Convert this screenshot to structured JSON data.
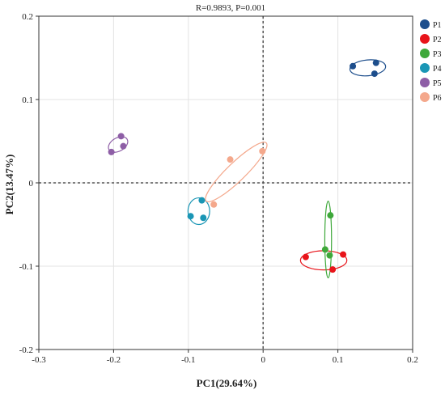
{
  "chart_data": {
    "type": "scatter",
    "title": "R=0.9893, P=0.001",
    "xlabel": "PC1(29.64%)",
    "ylabel": "PC2(13.47%)",
    "xlim": [
      -0.3,
      0.2
    ],
    "ylim": [
      -0.2,
      0.2
    ],
    "x_ticks": [
      -0.3,
      -0.2,
      -0.1,
      0,
      0.1,
      0.2
    ],
    "y_ticks": [
      0.2,
      0.1,
      0,
      -0.1,
      -0.2
    ],
    "x_tick_labels": [
      "-0.3",
      "-0.2",
      "-0.1",
      "0",
      "0.1",
      "0.2"
    ],
    "y_tick_labels": [
      "0.2",
      "0.1",
      "0",
      "-0.1",
      "-0.2"
    ],
    "grid": true,
    "reference_lines": {
      "x": 0,
      "y": 0,
      "style": "dotted"
    },
    "legend_position": "right",
    "series": [
      {
        "name": "P1",
        "color": "#1d4e8c",
        "points": [
          [
            0.12,
            0.14
          ],
          [
            0.151,
            0.144
          ],
          [
            0.149,
            0.131
          ]
        ],
        "ellipse": {
          "cx": 0.14,
          "cy": 0.138,
          "rx": 0.024,
          "ry": 0.0095,
          "angle_deg": -5
        }
      },
      {
        "name": "P2",
        "color": "#e8141a",
        "points": [
          [
            0.057,
            -0.089
          ],
          [
            0.107,
            -0.086
          ],
          [
            0.093,
            -0.104
          ]
        ],
        "ellipse": {
          "cx": 0.081,
          "cy": -0.093,
          "rx": 0.031,
          "ry": 0.0115,
          "angle_deg": 0
        }
      },
      {
        "name": "P3",
        "color": "#3ea83a",
        "points": [
          [
            0.09,
            -0.039
          ],
          [
            0.083,
            -0.08
          ],
          [
            0.089,
            -0.087
          ]
        ],
        "ellipse": {
          "cx": 0.087,
          "cy": -0.068,
          "rx": 0.0045,
          "ry": 0.046,
          "angle_deg": 0
        }
      },
      {
        "name": "P4",
        "color": "#1a96b5",
        "points": [
          [
            -0.082,
            -0.021
          ],
          [
            -0.097,
            -0.04
          ],
          [
            -0.08,
            -0.042
          ]
        ],
        "ellipse": {
          "cx": -0.086,
          "cy": -0.034,
          "rx": 0.0145,
          "ry": 0.016,
          "angle_deg": 0
        }
      },
      {
        "name": "P5",
        "color": "#8e5ea6",
        "points": [
          [
            -0.19,
            0.056
          ],
          [
            -0.203,
            0.037
          ],
          [
            -0.187,
            0.044
          ]
        ],
        "ellipse": {
          "cx": -0.194,
          "cy": 0.046,
          "rx": 0.014,
          "ry": 0.008,
          "angle_deg": -30
        }
      },
      {
        "name": "P6",
        "color": "#f4a88c",
        "points": [
          [
            -0.044,
            0.028
          ],
          [
            -0.001,
            0.038
          ],
          [
            -0.066,
            -0.026
          ]
        ],
        "ellipse": {
          "cx": -0.036,
          "cy": 0.013,
          "rx": 0.056,
          "ry": 0.011,
          "angle_deg": -44
        }
      }
    ]
  }
}
